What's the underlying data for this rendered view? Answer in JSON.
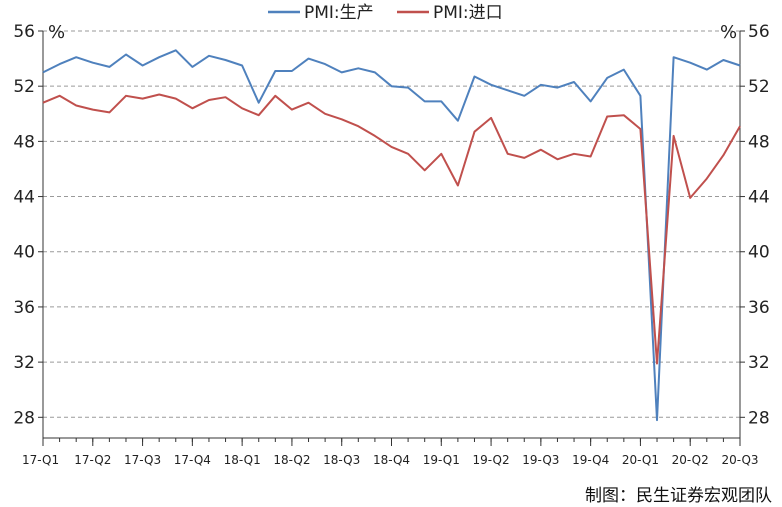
{
  "chart_data": {
    "type": "line",
    "y_unit_left": "%",
    "y_unit_right": "%",
    "ylim": [
      26.5,
      56
    ],
    "yticks": [
      28,
      32,
      36,
      40,
      44,
      48,
      52,
      56
    ],
    "grid": "horizontal-dashed",
    "legend_position": "top-center",
    "x_tick_labels": [
      "17-Q1",
      "17-Q2",
      "17-Q3",
      "17-Q4",
      "18-Q1",
      "18-Q2",
      "18-Q3",
      "18-Q4",
      "19-Q1",
      "19-Q2",
      "19-Q3",
      "19-Q4",
      "20-Q1",
      "20-Q2",
      "20-Q3"
    ],
    "x_count": 43,
    "series": [
      {
        "name": "PMI:生产",
        "color": "#4f81bd",
        "values": [
          53.0,
          53.6,
          54.1,
          53.7,
          53.4,
          54.3,
          53.5,
          54.1,
          54.6,
          53.4,
          54.2,
          53.9,
          53.5,
          50.8,
          53.1,
          53.1,
          54.0,
          53.6,
          53.0,
          53.3,
          53.0,
          52.0,
          51.9,
          50.9,
          50.9,
          49.5,
          52.7,
          52.1,
          51.7,
          51.3,
          52.1,
          51.9,
          52.3,
          50.9,
          52.6,
          53.2,
          51.3,
          27.8,
          54.1,
          53.7,
          53.2,
          53.9,
          53.5
        ]
      },
      {
        "name": "PMI:进口",
        "color": "#c0504d",
        "values": [
          50.8,
          51.3,
          50.6,
          50.3,
          50.1,
          51.3,
          51.1,
          51.4,
          51.1,
          50.4,
          51.0,
          51.2,
          50.4,
          49.9,
          51.3,
          50.3,
          50.8,
          50.0,
          49.6,
          49.1,
          48.4,
          47.6,
          47.1,
          45.9,
          47.1,
          44.8,
          48.7,
          49.7,
          47.1,
          46.8,
          47.4,
          46.7,
          47.1,
          46.9,
          49.8,
          49.9,
          48.9,
          31.9,
          48.4,
          43.9,
          45.3,
          47.0,
          49.1
        ]
      }
    ]
  },
  "source_text": "制图：民生证券宏观团队"
}
